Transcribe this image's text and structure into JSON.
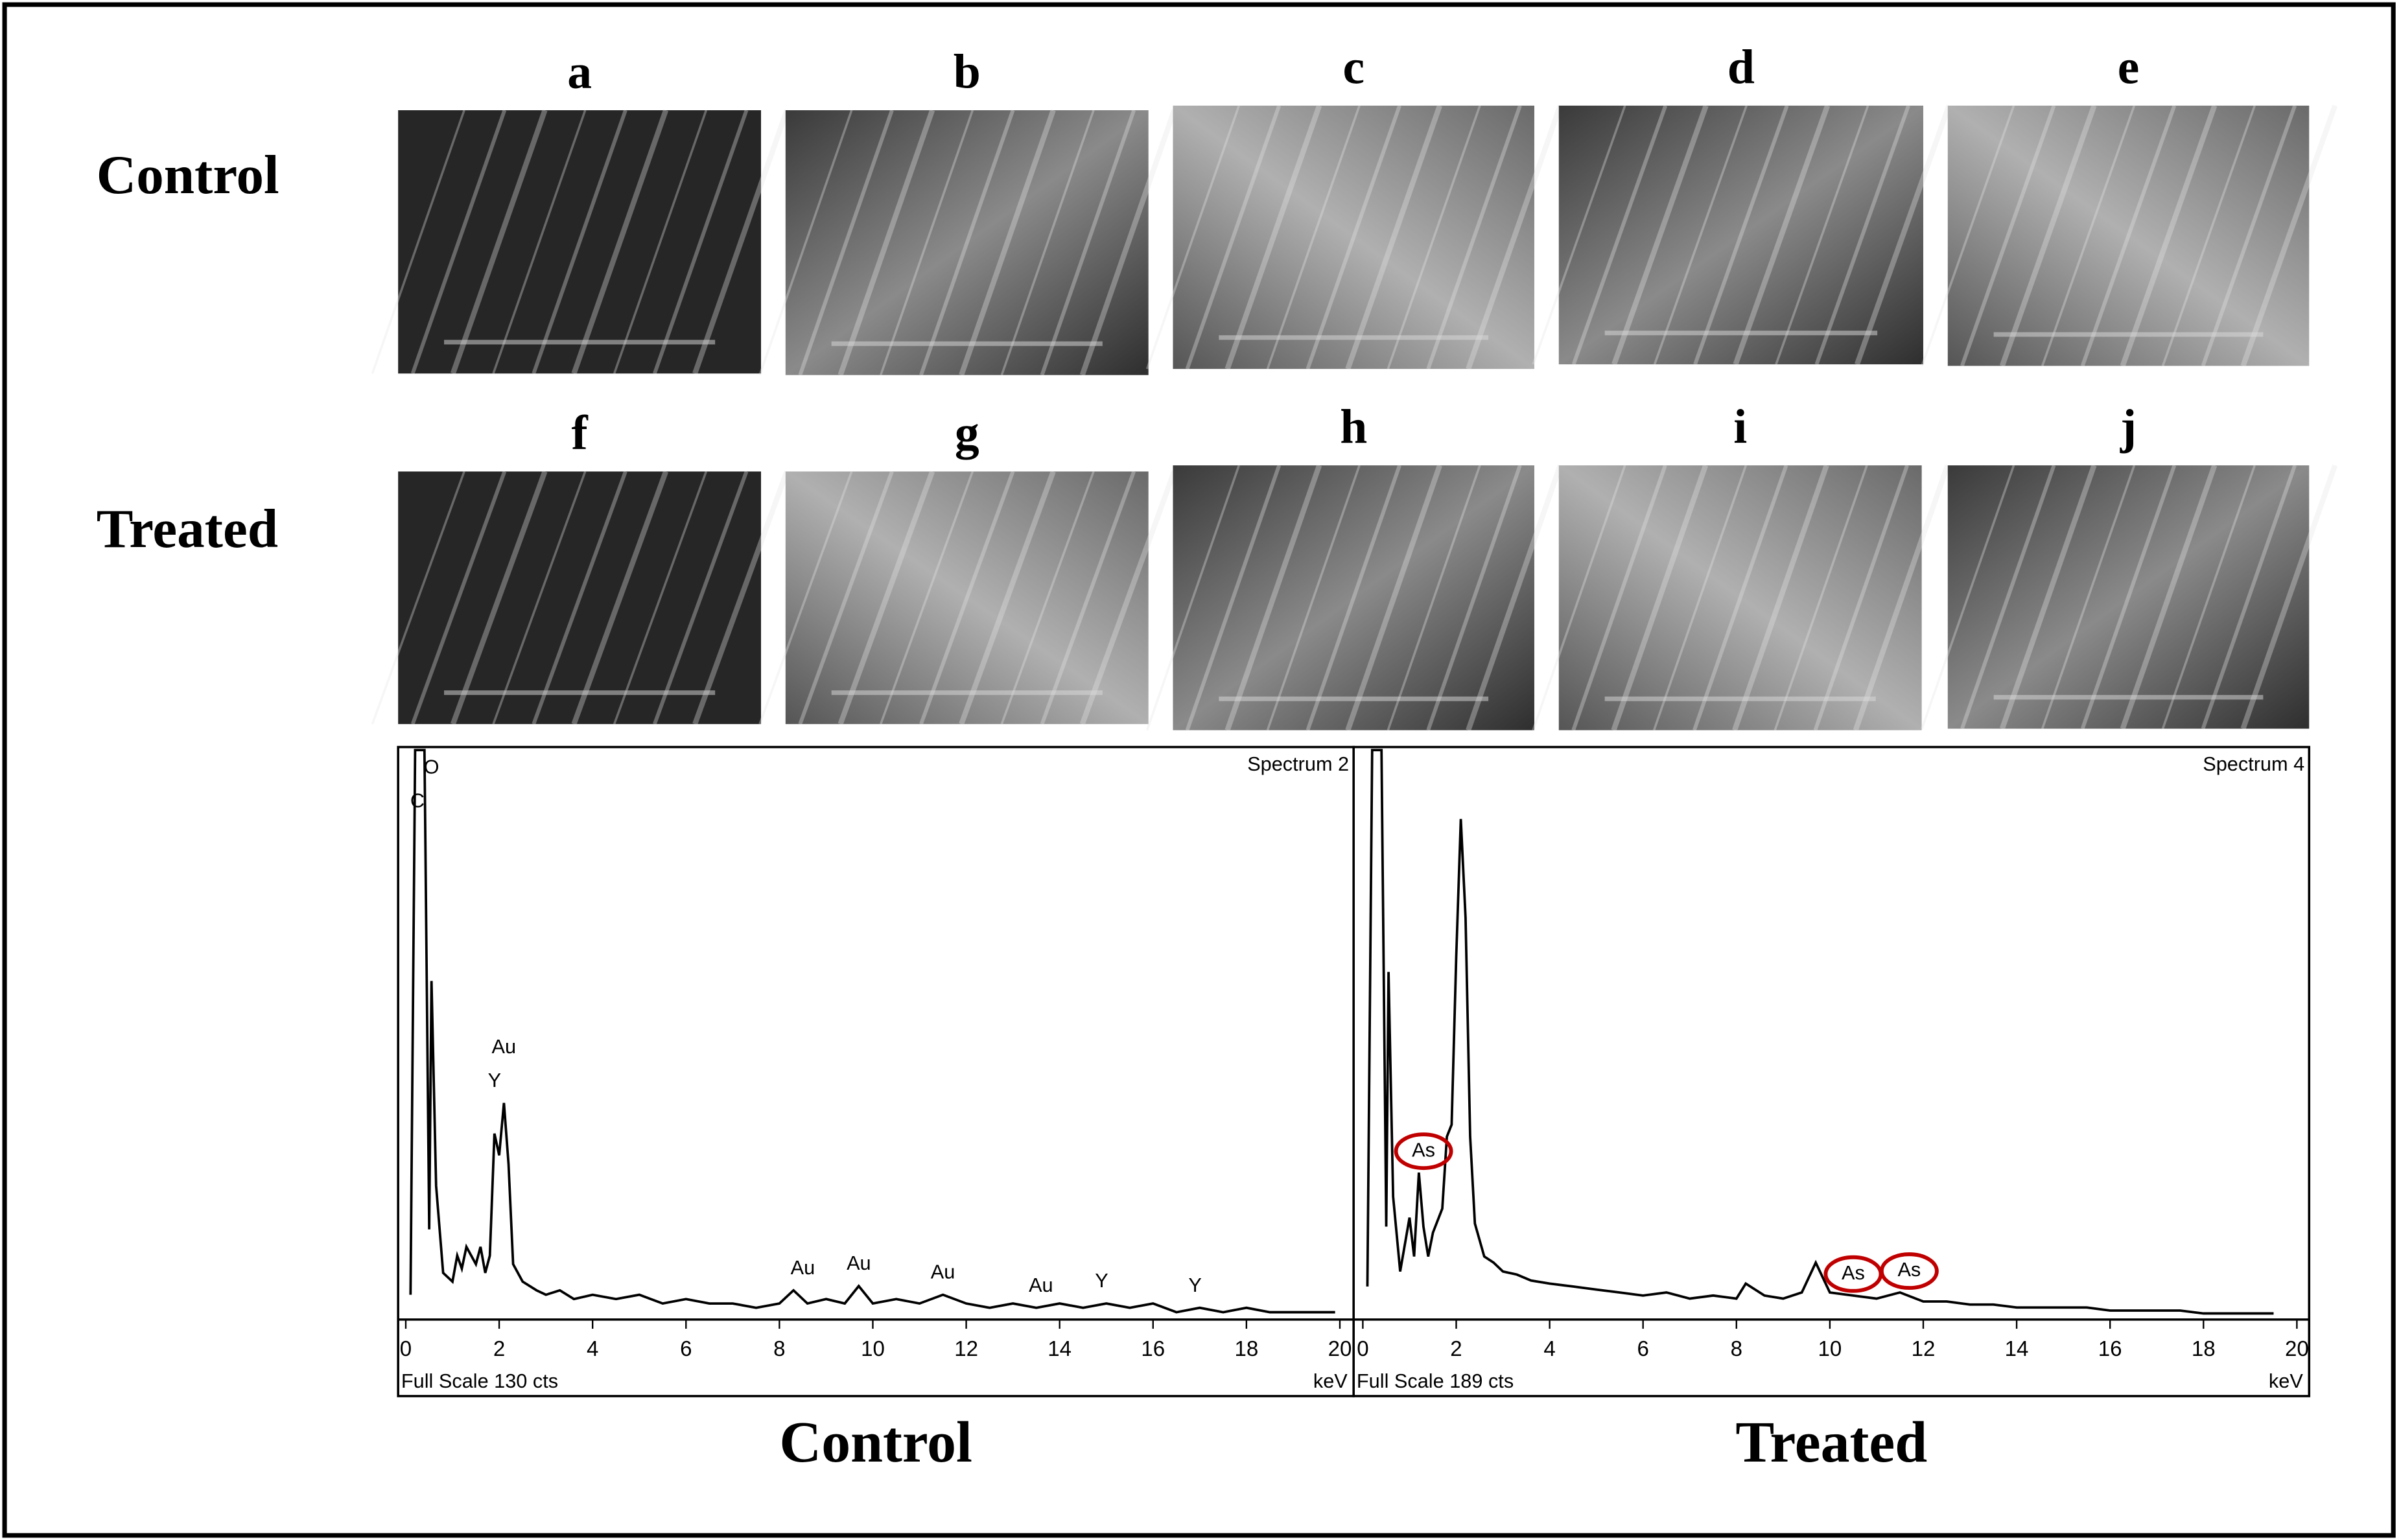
{
  "rows": [
    {
      "label": "Control"
    },
    {
      "label": "Treated"
    }
  ],
  "panels": [
    {
      "label": "a"
    },
    {
      "label": "b"
    },
    {
      "label": "c"
    },
    {
      "label": "d"
    },
    {
      "label": "e"
    },
    {
      "label": "f"
    },
    {
      "label": "g"
    },
    {
      "label": "h"
    },
    {
      "label": "i"
    },
    {
      "label": "j"
    }
  ],
  "chart_data": [
    {
      "type": "line",
      "title": "Spectrum 2",
      "caption": "Control",
      "footer": "Full Scale 130 cts",
      "xlabel": "keV",
      "color": "#000000",
      "xlim": [
        0,
        20
      ],
      "xticks": [
        0,
        2,
        4,
        6,
        8,
        10,
        12,
        14,
        16,
        18,
        20
      ],
      "ylim": [
        0,
        130
      ],
      "x": [
        0.1,
        0.2,
        0.3,
        0.4,
        0.5,
        0.55,
        0.65,
        0.8,
        1.0,
        1.1,
        1.2,
        1.3,
        1.5,
        1.6,
        1.7,
        1.8,
        1.9,
        2.0,
        2.1,
        2.2,
        2.3,
        2.5,
        2.8,
        3.0,
        3.3,
        3.6,
        4.0,
        4.5,
        5.0,
        5.5,
        6.0,
        6.5,
        7.0,
        7.5,
        8.0,
        8.3,
        8.6,
        9.0,
        9.4,
        9.7,
        10.0,
        10.5,
        11.0,
        11.5,
        12.0,
        12.5,
        13.0,
        13.5,
        14.0,
        14.5,
        15.0,
        15.5,
        16.0,
        16.5,
        17.0,
        17.5,
        18.0,
        18.5,
        19.0,
        19.5,
        19.9
      ],
      "values": [
        5,
        130,
        130,
        130,
        20,
        77,
        30,
        10,
        8,
        14,
        11,
        16,
        12,
        16,
        10,
        14,
        42,
        37,
        49,
        35,
        12,
        8,
        6,
        5,
        6,
        4,
        5,
        4,
        5,
        3,
        4,
        3,
        3,
        2,
        3,
        6,
        3,
        4,
        3,
        7,
        3,
        4,
        3,
        5,
        3,
        2,
        3,
        2,
        3,
        2,
        3,
        2,
        3,
        1,
        2,
        1,
        2,
        1,
        1,
        1,
        1
      ],
      "annotations": [
        {
          "text": "O",
          "x": 0.55
        },
        {
          "text": "C",
          "x": 0.25
        },
        {
          "text": "Y",
          "x": 1.9
        },
        {
          "text": "Au",
          "x": 2.1
        },
        {
          "text": "Au",
          "x": 8.5
        },
        {
          "text": "Au",
          "x": 9.7
        },
        {
          "text": "Au",
          "x": 11.5
        },
        {
          "text": "Au",
          "x": 13.6
        },
        {
          "text": "Y",
          "x": 14.9
        },
        {
          "text": "Y",
          "x": 16.9
        }
      ]
    },
    {
      "type": "line",
      "title": "Spectrum 4",
      "caption": "Treated",
      "footer": "Full Scale 189 cts",
      "xlabel": "keV",
      "color": "#000000",
      "highlight_color": "#c00000",
      "xlim": [
        0,
        20
      ],
      "xticks": [
        0,
        2,
        4,
        6,
        8,
        10,
        12,
        14,
        16,
        18,
        20
      ],
      "ylim": [
        0,
        189
      ],
      "x": [
        0.1,
        0.2,
        0.3,
        0.4,
        0.5,
        0.55,
        0.65,
        0.8,
        1.0,
        1.1,
        1.2,
        1.3,
        1.4,
        1.5,
        1.7,
        1.8,
        1.9,
        2.0,
        2.1,
        2.2,
        2.3,
        2.4,
        2.6,
        2.8,
        3.0,
        3.3,
        3.6,
        4.0,
        4.5,
        5.0,
        5.5,
        6.0,
        6.5,
        7.0,
        7.5,
        8.0,
        8.2,
        8.6,
        9.0,
        9.4,
        9.7,
        10.0,
        10.5,
        11.0,
        11.5,
        12.0,
        12.5,
        13.0,
        13.5,
        14.0,
        14.5,
        15.0,
        15.5,
        16.0,
        16.5,
        17.0,
        17.5,
        18.0,
        18.5,
        19.0,
        19.5
      ],
      "values": [
        10,
        189,
        189,
        189,
        30,
        115,
        40,
        15,
        33,
        20,
        48,
        30,
        20,
        28,
        36,
        60,
        64,
        120,
        166,
        133,
        60,
        31,
        20,
        18,
        15,
        14,
        12,
        11,
        10,
        9,
        8,
        7,
        8,
        6,
        7,
        6,
        11,
        7,
        6,
        8,
        18,
        8,
        7,
        6,
        8,
        5,
        5,
        4,
        4,
        3,
        3,
        3,
        3,
        2,
        2,
        2,
        2,
        1,
        1,
        1,
        1
      ],
      "annotations": [
        {
          "text": "As",
          "x": 1.3
        },
        {
          "text": "As",
          "x": 10.5
        },
        {
          "text": "As",
          "x": 11.7
        }
      ]
    }
  ]
}
